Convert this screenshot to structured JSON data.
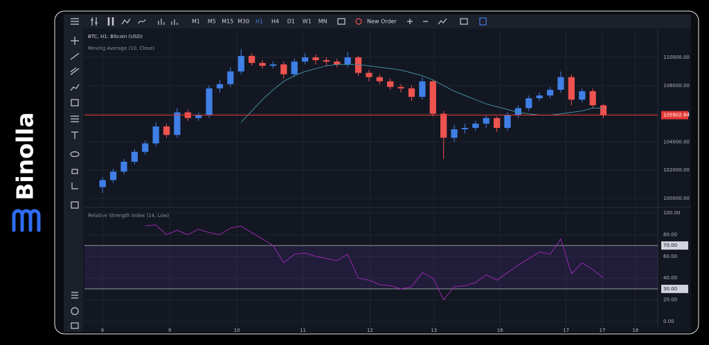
{
  "brand": "Binolla",
  "toolbar": {
    "timeframes": [
      "M1",
      "M5",
      "M15",
      "M30",
      "H1",
      "H4",
      "D1",
      "W1",
      "MN"
    ],
    "active_timeframe": "H1",
    "new_order": "New Order"
  },
  "chart_data": [
    {
      "type": "candlestick",
      "title": "BTC, H1: Bitcoin (USD)",
      "up_color": "#3f7fe6",
      "down_color": "#ef5350",
      "open": [
        100800,
        101300,
        101900,
        102600,
        103300,
        103900,
        105100,
        104500,
        106100,
        105700,
        105900,
        107800,
        108100,
        109000,
        110100,
        109600,
        109400,
        109500,
        108800,
        109700,
        110000,
        109800,
        109700,
        109500,
        110000,
        108900,
        108600,
        108300,
        107900,
        107800,
        107200,
        108300,
        106000,
        104300,
        104900,
        105000,
        105300,
        105700,
        105000,
        105900,
        106400,
        107100,
        107300,
        107700,
        108600,
        107000,
        107600,
        106600
      ],
      "high": [
        101500,
        102100,
        102800,
        103500,
        104100,
        105400,
        105300,
        106400,
        106300,
        106100,
        108000,
        108400,
        109300,
        110600,
        110300,
        109800,
        109700,
        109700,
        109900,
        110300,
        110200,
        110000,
        109900,
        110400,
        110100,
        109100,
        108800,
        108500,
        108100,
        108000,
        108600,
        108400,
        106200,
        105200,
        105300,
        105500,
        105900,
        105800,
        106100,
        106600,
        107300,
        107500,
        107900,
        109000,
        108800,
        107800,
        107800,
        106700
      ],
      "low": [
        100400,
        101100,
        101700,
        102400,
        103100,
        103700,
        104300,
        104300,
        105500,
        105500,
        105700,
        107500,
        107900,
        108800,
        109400,
        109200,
        109200,
        108500,
        108600,
        109500,
        109500,
        109400,
        109300,
        109300,
        108700,
        108300,
        108100,
        107700,
        107500,
        106900,
        107000,
        105800,
        102800,
        104000,
        104600,
        104800,
        105000,
        104700,
        104800,
        105700,
        106200,
        106900,
        107100,
        107500,
        106600,
        106800,
        106400,
        105700
      ],
      "close": [
        101300,
        101900,
        102600,
        103300,
        103900,
        105100,
        104500,
        106100,
        105700,
        105900,
        107800,
        108100,
        109000,
        110100,
        109600,
        109400,
        109500,
        108800,
        109700,
        110000,
        109800,
        109700,
        109500,
        110000,
        108900,
        108600,
        108300,
        107900,
        107800,
        107200,
        108300,
        106000,
        104300,
        104900,
        105000,
        105300,
        105700,
        105000,
        105900,
        106400,
        107100,
        107300,
        107700,
        108600,
        107000,
        107600,
        106600,
        105902.84
      ],
      "overlay": {
        "name": "Moving Average (10, Close)",
        "color": "#3f8f9a",
        "values": [
          null,
          null,
          null,
          null,
          null,
          null,
          null,
          null,
          null,
          null,
          null,
          null,
          null,
          105400,
          106200,
          107000,
          107700,
          108300,
          108700,
          109000,
          109200,
          109400,
          109500,
          109500,
          109500,
          109400,
          109300,
          109200,
          109100,
          108900,
          108700,
          108400,
          108000,
          107600,
          107300,
          107000,
          106700,
          106500,
          106300,
          106100,
          106000,
          105900,
          105900,
          106000,
          106100,
          106200,
          106400,
          106400
        ]
      },
      "last_price": 105902.84,
      "last_price_color": "#e53935",
      "ylim": [
        99460,
        111860
      ],
      "yticks": [
        {
          "value": 110000,
          "label": "110000.00"
        },
        {
          "value": 108000,
          "label": "108000.00"
        },
        {
          "value": 106000,
          "label": "106000.00"
        },
        {
          "value": 104000,
          "label": "104000.00"
        },
        {
          "value": 102000,
          "label": "102000.00"
        },
        {
          "value": 100000,
          "label": "100000.00"
        }
      ],
      "xlim": [
        -1.7,
        52.1
      ],
      "xticks": [
        {
          "value": 0,
          "label": "6"
        },
        {
          "value": 6.3,
          "label": "9"
        },
        {
          "value": 12.6,
          "label": "10"
        },
        {
          "value": 18.8,
          "label": "11"
        },
        {
          "value": 25.1,
          "label": "12"
        },
        {
          "value": 31.1,
          "label": "13"
        },
        {
          "value": 37.3,
          "label": "16"
        },
        {
          "value": 43.5,
          "label": "17"
        },
        {
          "value": 46.9,
          "label": "17"
        },
        {
          "value": 50,
          "label": "18"
        }
      ],
      "grid": true
    },
    {
      "type": "line",
      "title": "Relative Strength Index (14, Low)",
      "color": "#9c27b0",
      "values": [
        null,
        null,
        null,
        null,
        88,
        89,
        80,
        84,
        80,
        85,
        82,
        80,
        86,
        88,
        82,
        76,
        70,
        54,
        62,
        63,
        60,
        58,
        56,
        62,
        40,
        38,
        34,
        33,
        30,
        32,
        45,
        40,
        20,
        32,
        33,
        36,
        43,
        38,
        45,
        52,
        58,
        64,
        62,
        76,
        44,
        54,
        48,
        40
      ],
      "bands": [
        {
          "value": 70,
          "label": "70.00"
        },
        {
          "value": 30,
          "label": "30.00"
        }
      ],
      "band_fill": "rgba(103,58,183,0.16)",
      "ylim": [
        -6.4,
        103.2
      ],
      "yticks": [
        {
          "value": 100,
          "label": "100.00"
        },
        {
          "value": 80,
          "label": "80.00"
        },
        {
          "value": 60,
          "label": "60.00"
        },
        {
          "value": 40,
          "label": "40.00"
        },
        {
          "value": 20,
          "label": "20.00"
        },
        {
          "value": 0,
          "label": "0.00"
        }
      ],
      "xlim": [
        -1.7,
        52.1
      ],
      "grid": true
    }
  ]
}
